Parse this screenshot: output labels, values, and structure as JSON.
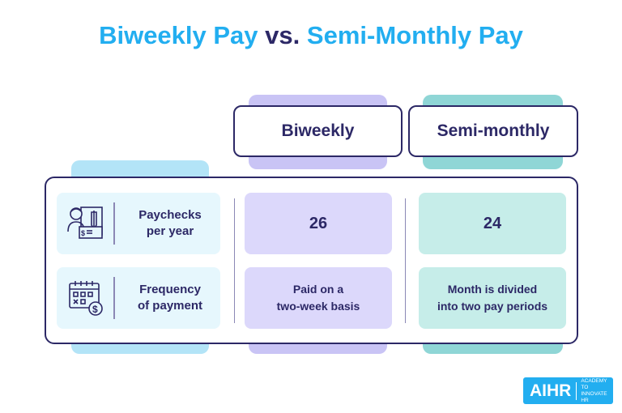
{
  "title": {
    "part1": "Biweekly Pay",
    "part2": "vs.",
    "part3": "Semi-Monthly Pay"
  },
  "columns": {
    "biweekly": "Biweekly",
    "semimonthly": "Semi-monthly"
  },
  "rows": [
    {
      "label_line1": "Paychecks",
      "label_line2": "per year",
      "icon": "paycheck-person-icon",
      "biweekly": "26",
      "semimonthly": "24"
    },
    {
      "label_line1": "Frequency",
      "label_line2": "of payment",
      "icon": "calendar-dollar-icon",
      "biweekly_line1": "Paid on a",
      "biweekly_line2": "two-week basis",
      "semimonthly_line1": "Month is divided",
      "semimonthly_line2": "into two pay periods"
    }
  ],
  "logo": {
    "brand": "AIHR",
    "tagline_line1": "ACADEMY TO",
    "tagline_line2": "INNOVATE HR"
  },
  "colors": {
    "title_blue": "#22aef0",
    "navy": "#2c2866",
    "biweekly_purple": "#c9c4f5",
    "semimonthly_teal": "#8fd6d6",
    "label_blue": "#b3e4f7"
  }
}
